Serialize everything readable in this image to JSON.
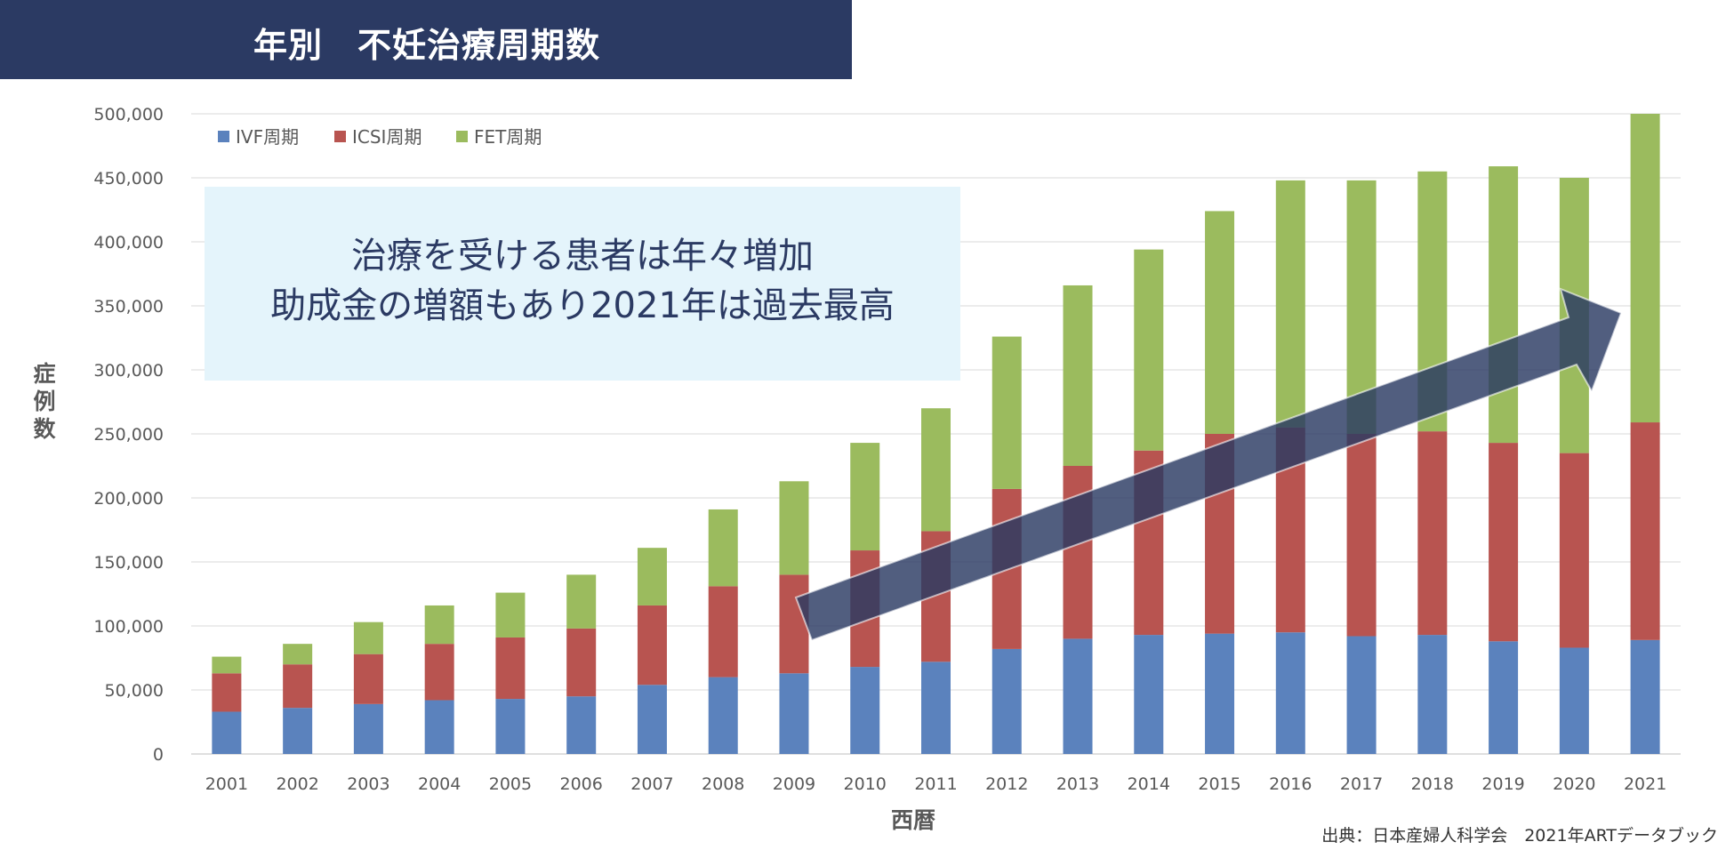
{
  "header": {
    "title": "年別　不妊治療周期数"
  },
  "callout": {
    "line1": "治療を受ける患者は年々増加",
    "line2": "助成金の増額もあり2021年は過去最高"
  },
  "source_note": "出典：日本産婦人科学会　2021年ARTデータブック",
  "colors": {
    "ivf": "#5b82bd",
    "icsi": "#b85450",
    "fet": "#9bbb5e",
    "arrow": "#2b3a63",
    "banner": "#2b3a63",
    "callout_bg": "#e4f4fb"
  },
  "chart_data": {
    "type": "bar",
    "stacked": true,
    "title": "年別　不妊治療周期数",
    "xlabel": "西暦",
    "ylabel": "症例数",
    "ylim": [
      0,
      500000
    ],
    "yticks": [
      0,
      50000,
      100000,
      150000,
      200000,
      250000,
      300000,
      350000,
      400000,
      450000,
      500000
    ],
    "ytick_labels": [
      "0",
      "50,000",
      "100,000",
      "150,000",
      "200,000",
      "250,000",
      "300,000",
      "350,000",
      "400,000",
      "450,000",
      "500,000"
    ],
    "grid": true,
    "legend_position": "top-left",
    "categories": [
      "2001",
      "2002",
      "2003",
      "2004",
      "2005",
      "2006",
      "2007",
      "2008",
      "2009",
      "2010",
      "2011",
      "2012",
      "2013",
      "2014",
      "2015",
      "2016",
      "2017",
      "2018",
      "2019",
      "2020",
      "2021"
    ],
    "series": [
      {
        "name": "IVF周期",
        "color_key": "ivf",
        "values": [
          33000,
          36000,
          39000,
          42000,
          43000,
          45000,
          54000,
          60000,
          63000,
          68000,
          72000,
          82000,
          90000,
          93000,
          94000,
          95000,
          92000,
          93000,
          88000,
          83000,
          89000
        ]
      },
      {
        "name": "ICSI周期",
        "color_key": "icsi",
        "values": [
          30000,
          34000,
          39000,
          44000,
          48000,
          53000,
          62000,
          71000,
          77000,
          91000,
          102000,
          125000,
          135000,
          144000,
          156000,
          160000,
          158000,
          159000,
          155000,
          152000,
          170000
        ]
      },
      {
        "name": "FET周期",
        "color_key": "fet",
        "values": [
          13000,
          16000,
          25000,
          30000,
          35000,
          42000,
          45000,
          60000,
          73000,
          84000,
          96000,
          119000,
          141000,
          157000,
          174000,
          193000,
          198000,
          203000,
          216000,
          215000,
          241000
        ]
      }
    ],
    "annotation": "trend-arrow"
  }
}
